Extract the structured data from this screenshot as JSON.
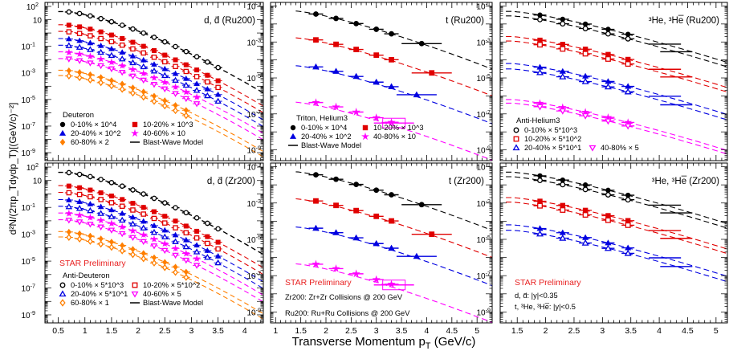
{
  "figure": {
    "x_title": "Transverse Momentum p",
    "x_title_sub": "T",
    "x_title_unit": " (GeV/c)",
    "y_title": "d²N/(2πp_Tdydp_T)[(GeV/c)⁻²]"
  },
  "chart_data": [
    {
      "id": "d_ru",
      "type": "scatter",
      "panel_label": "d, d̄ (Ru200)",
      "xlim": [
        0.25,
        4.35
      ],
      "ylim_log10": [
        -9.6,
        2.3
      ],
      "x_ticks": [
        "0.5",
        "1",
        "1.5",
        "2",
        "2.5",
        "3",
        "3.5",
        "4"
      ],
      "y_ticks": [
        "10^2",
        "10",
        "1",
        "10^-1",
        "10^-3",
        "10^-5",
        "10^-7",
        "10^-9"
      ],
      "legend_title": "Deuteron",
      "legend": [
        {
          "label": "0-10% × 10^4",
          "color": "#000000",
          "marker": "filled-circle"
        },
        {
          "label": "10-20% × 10^3",
          "color": "#e00000",
          "marker": "filled-square"
        },
        {
          "label": "20-40% × 10^2",
          "color": "#0000e0",
          "marker": "filled-triangle"
        },
        {
          "label": "40-60% × 10",
          "color": "#ff00ff",
          "marker": "filled-star"
        },
        {
          "label": "60-80% × 2",
          "color": "#ff7f00",
          "marker": "filled-diamond"
        },
        {
          "label": "Blast-Wave Model",
          "color": "#000000",
          "marker": "dash"
        }
      ],
      "series": [
        {
          "name": "0-10% × 10^4",
          "color": "#000000",
          "marker": "filled-circle",
          "x": [
            0.7,
            0.9,
            1.1,
            1.3,
            1.5,
            1.7,
            1.9,
            2.1,
            2.3,
            2.5,
            2.7,
            2.9,
            3.1,
            3.3,
            3.5
          ],
          "log10_y": [
            1.6,
            1.58,
            1.52,
            1.44,
            1.35,
            1.24,
            1.12,
            0.98,
            0.83,
            0.67,
            0.5,
            0.32,
            0.14,
            -0.05,
            -0.25
          ]
        },
        {
          "name": "0-10% × 10^4 fit",
          "color": "#000000",
          "marker": "none",
          "x": [
            0.6,
            1.5,
            2.5,
            3.5,
            4.3
          ],
          "log10_y": [
            1.6,
            1.35,
            0.67,
            -0.25,
            -1.1
          ]
        }
      ]
    },
    {
      "id": "t_ru",
      "type": "scatter",
      "panel_label": "t (Ru200)",
      "xlim": [
        0.9,
        5.3
      ],
      "ylim_log10": [
        -9.6,
        -0.8
      ],
      "legend_title": "Triton, Helium3",
      "legend": [
        {
          "label": "0-10% × 10^4",
          "color": "#000000",
          "marker": "filled-circle"
        },
        {
          "label": "10-20% × 10^3",
          "color": "#e00000",
          "marker": "filled-square"
        },
        {
          "label": "20-40% × 10^2",
          "color": "#0000e0",
          "marker": "filled-triangle"
        },
        {
          "label": "40-80% × 10",
          "color": "#ff00ff",
          "marker": "filled-star"
        },
        {
          "label": "Blast-Wave Model",
          "color": "#000000",
          "marker": "dash"
        }
      ],
      "series": [
        {
          "name": "0-10% × 10^4",
          "color": "#000000",
          "marker": "filled-circle",
          "x": [
            1.8,
            2.2,
            2.6,
            3.0,
            3.3,
            3.9
          ],
          "log10_y": [
            -1.28,
            -1.47,
            -1.68,
            -1.98,
            -2.2,
            -2.7
          ]
        },
        {
          "name": "10-20% × 10^3",
          "color": "#e00000",
          "marker": "filled-square",
          "x": [
            1.8,
            2.2,
            2.6,
            3.0,
            3.3,
            4.1
          ],
          "log10_y": [
            -2.72,
            -2.92,
            -3.12,
            -3.42,
            -3.65,
            -4.12
          ]
        },
        {
          "name": "20-40% × 10^2",
          "color": "#0000e0",
          "marker": "filled-triangle",
          "x": [
            1.8,
            2.2,
            2.6,
            3.0,
            3.3
          ],
          "log10_y": [
            -4.22,
            -4.42,
            -4.65,
            -4.95,
            -5.22
          ]
        },
        {
          "name": "40-80% × 10",
          "color": "#ff00ff",
          "marker": "filled-star",
          "x": [
            1.8,
            2.2,
            2.6,
            3.0,
            3.3
          ],
          "log10_y": [
            -6.2,
            -6.42,
            -6.68,
            -7.02,
            -7.28
          ]
        }
      ]
    },
    {
      "id": "he3_ru",
      "type": "scatter",
      "panel_label": "³He, ³He̅ (Ru200)",
      "xlim": [
        1.2,
        5.2
      ],
      "ylim_log10": [
        -9.6,
        -0.8
      ],
      "legend_title": "Anti-Helium3",
      "legend": [
        {
          "label": "0-10% × 5*10^3",
          "color": "#000000",
          "marker": "open-circle"
        },
        {
          "label": "10-20% × 5*10^2",
          "color": "#e00000",
          "marker": "open-square"
        },
        {
          "label": "20-40% × 5*10^1",
          "color": "#0000e0",
          "marker": "open-triangle"
        },
        {
          "label": "40-80% × 5",
          "color": "#ff00ff",
          "marker": "open-inverted-triangle"
        }
      ],
      "series": []
    },
    {
      "id": "d_zr",
      "type": "scatter",
      "panel_label": "d, d̄ (Zr200)",
      "xlim": [
        0.25,
        4.35
      ],
      "ylim_log10": [
        -9.6,
        2.3
      ],
      "legend_title": "Anti-Deuteron",
      "legend": [
        {
          "label": "0-10% × 5*10^3",
          "color": "#000000",
          "marker": "open-circle"
        },
        {
          "label": "10-20% × 5*10^2",
          "color": "#e00000",
          "marker": "open-square"
        },
        {
          "label": "20-40% × 5*10^1",
          "color": "#0000e0",
          "marker": "open-triangle"
        },
        {
          "label": "40-60% × 5",
          "color": "#ff00ff",
          "marker": "open-inverted-triangle"
        },
        {
          "label": "60-80% × 1",
          "color": "#ff7f00",
          "marker": "open-diamond"
        },
        {
          "label": "Blast-Wave Model",
          "color": "#000000",
          "marker": "dash"
        }
      ],
      "annotation": "STAR Preliminary",
      "series": []
    },
    {
      "id": "t_zr",
      "type": "scatter",
      "panel_label": "t (Zr200)",
      "xlim": [
        0.9,
        5.3
      ],
      "ylim_log10": [
        -9.6,
        -0.8
      ],
      "annotation": "STAR Preliminary",
      "notes": [
        "Zr200: Zr+Zr Collisions @ 200 GeV",
        "Ru200: Ru+Ru Collisions @ 200 GeV"
      ],
      "series": []
    },
    {
      "id": "he3_zr",
      "type": "scatter",
      "panel_label": "³He, ³He̅ (Zr200)",
      "xlim": [
        1.2,
        5.2
      ],
      "ylim_log10": [
        -9.6,
        -0.8
      ],
      "annotation": "STAR Preliminary",
      "notes": [
        "d, d̄: |y|<0.35",
        "t, ³He, ³He̅: |y|<0.5"
      ],
      "series": []
    }
  ],
  "colors": {
    "black": "#000000",
    "red": "#e00000",
    "blue": "#0000e0",
    "magenta": "#ff00ff",
    "orange": "#ff7f00",
    "star_red": "#e82222"
  }
}
